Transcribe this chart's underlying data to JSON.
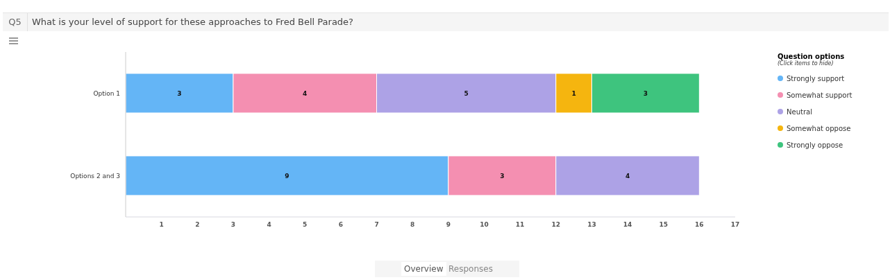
{
  "chart_data": {
    "type": "bar",
    "orientation": "horizontal",
    "stacked": true,
    "title": "What is your level of support for these approaches to Fred Bell Parade?",
    "legend_title": "Question options",
    "annotations": [
      "Q5",
      "(Click items to hide)",
      "Overview",
      "Responses"
    ],
    "categories": [
      "Option 1",
      "Options 2 and 3"
    ],
    "series": [
      {
        "name": "Strongly support",
        "color": "#64b5f6",
        "values": [
          3,
          9
        ]
      },
      {
        "name": "Somewhat support",
        "color": "#f48fb1",
        "values": [
          4,
          3
        ]
      },
      {
        "name": "Neutral",
        "color": "#ada2e6",
        "values": [
          5,
          4
        ]
      },
      {
        "name": "Somewhat oppose",
        "color": "#f5b50f",
        "values": [
          1,
          null
        ]
      },
      {
        "name": "Strongly oppose",
        "color": "#3ec47e",
        "values": [
          3,
          null
        ]
      }
    ],
    "xlim": [
      0,
      17
    ],
    "xticks": [
      1,
      2,
      3,
      4,
      5,
      6,
      7,
      8,
      9,
      10,
      11,
      12,
      13,
      14,
      15,
      16,
      17
    ],
    "legend": "right",
    "data_labels": true
  }
}
